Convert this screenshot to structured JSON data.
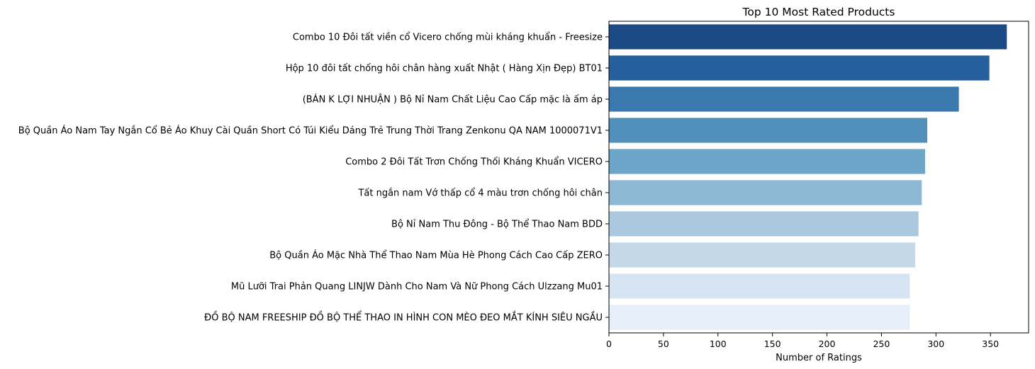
{
  "chart_data": {
    "type": "bar",
    "orientation": "horizontal",
    "title": "Top 10 Most Rated Products",
    "xlabel": "Number of Ratings",
    "ylabel": "",
    "xlim": [
      0,
      385
    ],
    "xticks": [
      0,
      50,
      100,
      150,
      200,
      250,
      300,
      350
    ],
    "grid": false,
    "categories": [
      "Combo 10 Đôi tất viền cổ Vicero chống mùi kháng khuẩn - Freesize",
      "Hộp 10 đôi tất chống hôi chân hàng xuất Nhật ( Hàng Xịn Đẹp) BT01",
      "(BÁN K LỢI NHUẬN ) Bộ Nỉ Nam Chất Liệu Cao Cấp mặc là ấm áp",
      "Bộ Quần Áo Nam Tay Ngắn Cổ Bẻ Áo Khuy Cài Quần Short Có Túi Kiểu Dáng Trẻ Trung Thời Trang Zenkonu QA NAM 1000071V1",
      "Combo 2 Đôi Tất Trơn Chống Thối Kháng Khuẩn VICERO",
      "Tất ngắn nam Vớ thấp cổ 4 màu trơn chống hôi chân",
      "Bộ Nỉ Nam Thu Đông - Bộ Thể Thao Nam BDD",
      "Bộ Quần Áo Mặc Nhà Thể Thao Nam Mùa Hè Phong Cách Cao Cấp ZERO",
      "Mũ Lưỡi Trai Phản Quang LINJW Dành Cho Nam Và Nữ Phong Cách Ulzzang Mu01",
      "ĐỒ BỘ NAM  FREESHIP  ĐỒ BỘ THỂ THAO IN HÌNH CON MÈO ĐEO MẮT KÍNH SIÊU NGẦU"
    ],
    "values": [
      365,
      349,
      321,
      292,
      290,
      287,
      284,
      281,
      276,
      276
    ],
    "colors": [
      "#1c4a85",
      "#25609c",
      "#3b78ad",
      "#5090bb",
      "#6da5c9",
      "#8cb8d3",
      "#aac9de",
      "#c4d8e8",
      "#d6e3f0",
      "#e6eef7"
    ]
  }
}
